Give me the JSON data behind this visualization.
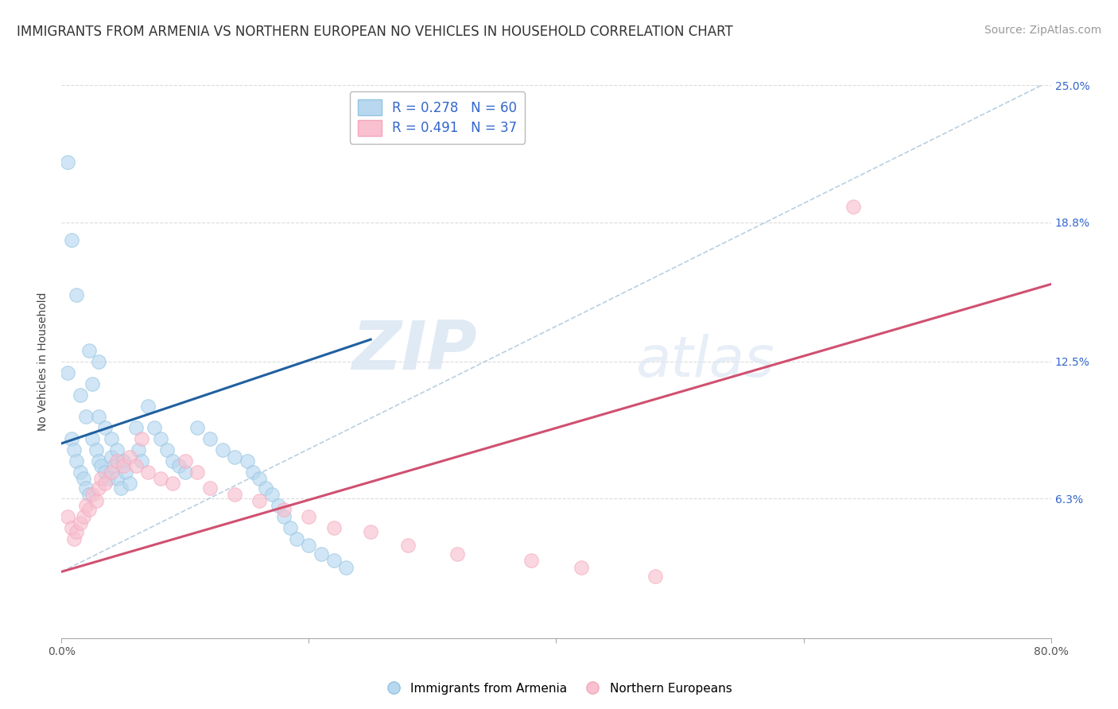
{
  "title": "IMMIGRANTS FROM ARMENIA VS NORTHERN EUROPEAN NO VEHICLES IN HOUSEHOLD CORRELATION CHART",
  "source": "Source: ZipAtlas.com",
  "ylabel": "No Vehicles in Household",
  "xlim": [
    0.0,
    0.8
  ],
  "ylim": [
    0.0,
    0.25
  ],
  "xticklabels_pos": [
    0.0,
    0.8
  ],
  "xticklabels": [
    "0.0%",
    "80.0%"
  ],
  "ytick_right_labels": [
    "25.0%",
    "18.8%",
    "12.5%",
    "6.3%"
  ],
  "ytick_right_values": [
    0.25,
    0.188,
    0.125,
    0.063
  ],
  "legend_label_blue": "R = 0.278   N = 60",
  "legend_label_pink": "R = 0.491   N = 37",
  "blue_color": "#94c4e0",
  "pink_color": "#f4a8bc",
  "blue_fill": "#b8d8f0",
  "pink_fill": "#f8c0d0",
  "blue_line_color": "#2060a0",
  "pink_line_color": "#d05070",
  "dashed_line_color": "#a8c4d8",
  "watermark_zip": "ZIP",
  "watermark_atlas": "atlas",
  "blue_scatter_x": [
    0.005,
    0.008,
    0.01,
    0.012,
    0.015,
    0.015,
    0.018,
    0.02,
    0.02,
    0.022,
    0.025,
    0.025,
    0.028,
    0.03,
    0.03,
    0.032,
    0.035,
    0.035,
    0.038,
    0.04,
    0.04,
    0.042,
    0.045,
    0.045,
    0.048,
    0.05,
    0.052,
    0.055,
    0.06,
    0.062,
    0.065,
    0.07,
    0.075,
    0.08,
    0.085,
    0.09,
    0.095,
    0.1,
    0.11,
    0.12,
    0.13,
    0.14,
    0.15,
    0.155,
    0.16,
    0.165,
    0.17,
    0.175,
    0.18,
    0.185,
    0.19,
    0.2,
    0.21,
    0.22,
    0.23,
    0.005,
    0.008,
    0.012,
    0.022,
    0.03
  ],
  "blue_scatter_y": [
    0.12,
    0.09,
    0.085,
    0.08,
    0.11,
    0.075,
    0.072,
    0.1,
    0.068,
    0.065,
    0.115,
    0.09,
    0.085,
    0.1,
    0.08,
    0.078,
    0.095,
    0.075,
    0.072,
    0.09,
    0.082,
    0.078,
    0.085,
    0.072,
    0.068,
    0.08,
    0.075,
    0.07,
    0.095,
    0.085,
    0.08,
    0.105,
    0.095,
    0.09,
    0.085,
    0.08,
    0.078,
    0.075,
    0.095,
    0.09,
    0.085,
    0.082,
    0.08,
    0.075,
    0.072,
    0.068,
    0.065,
    0.06,
    0.055,
    0.05,
    0.045,
    0.042,
    0.038,
    0.035,
    0.032,
    0.215,
    0.18,
    0.155,
    0.13,
    0.125
  ],
  "pink_scatter_x": [
    0.005,
    0.008,
    0.01,
    0.012,
    0.015,
    0.018,
    0.02,
    0.022,
    0.025,
    0.028,
    0.03,
    0.032,
    0.035,
    0.04,
    0.045,
    0.05,
    0.055,
    0.06,
    0.065,
    0.07,
    0.08,
    0.09,
    0.1,
    0.11,
    0.12,
    0.14,
    0.16,
    0.18,
    0.2,
    0.22,
    0.25,
    0.28,
    0.32,
    0.38,
    0.42,
    0.48,
    0.64
  ],
  "pink_scatter_y": [
    0.055,
    0.05,
    0.045,
    0.048,
    0.052,
    0.055,
    0.06,
    0.058,
    0.065,
    0.062,
    0.068,
    0.072,
    0.07,
    0.075,
    0.08,
    0.078,
    0.082,
    0.078,
    0.09,
    0.075,
    0.072,
    0.07,
    0.08,
    0.075,
    0.068,
    0.065,
    0.062,
    0.058,
    0.055,
    0.05,
    0.048,
    0.042,
    0.038,
    0.035,
    0.032,
    0.028,
    0.195
  ],
  "blue_trend": [
    0.0,
    0.25,
    0.088,
    0.135
  ],
  "pink_trend": [
    0.0,
    0.8,
    0.03,
    0.16
  ],
  "dashed_trend": [
    0.0,
    0.8,
    0.03,
    0.252
  ],
  "grid_color": "#cccccc",
  "bg_color": "#ffffff",
  "title_fontsize": 12,
  "axis_label_fontsize": 10,
  "tick_fontsize": 10,
  "source_fontsize": 10,
  "legend_fontsize": 12
}
